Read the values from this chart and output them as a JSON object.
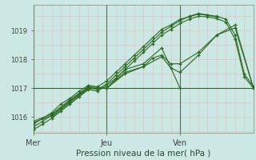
{
  "bg_color": "#cce8e4",
  "plot_bg_color": "#cce8e4",
  "grid_color_h": "#f0c8c8",
  "grid_color_v": "#f0c8c8",
  "vline_color": "#555555",
  "line_color": "#2a6a20",
  "title": "Pression niveau de la mer( hPa )",
  "ylabel_vals": [
    1016,
    1017,
    1018,
    1019
  ],
  "ylim": [
    1015.45,
    1019.9
  ],
  "xlim": [
    0,
    72
  ],
  "xtick_positions": [
    0,
    24,
    48
  ],
  "xtick_labels": [
    "Mer",
    "Jeu",
    "Ven"
  ],
  "vline_positions": [
    0,
    24,
    48
  ],
  "series": [
    {
      "x": [
        0,
        3,
        6,
        9,
        12,
        15,
        18,
        21,
        24,
        27,
        30,
        33,
        36,
        39,
        42,
        45,
        48,
        51,
        54,
        57,
        60,
        63,
        66,
        69,
        72
      ],
      "y": [
        1015.65,
        1015.85,
        1016.05,
        1016.3,
        1016.55,
        1016.8,
        1017.05,
        1016.95,
        1017.15,
        1017.45,
        1017.75,
        1018.05,
        1018.35,
        1018.65,
        1018.95,
        1019.15,
        1019.35,
        1019.5,
        1019.6,
        1019.55,
        1019.5,
        1019.4,
        1018.85,
        1017.5,
        1017.05
      ]
    },
    {
      "x": [
        0,
        3,
        6,
        9,
        12,
        15,
        18,
        21,
        24,
        27,
        30,
        33,
        36,
        39,
        42,
        45,
        48,
        51,
        54,
        57,
        60,
        63,
        66,
        69,
        72
      ],
      "y": [
        1015.55,
        1015.75,
        1015.95,
        1016.2,
        1016.45,
        1016.7,
        1016.95,
        1016.9,
        1017.1,
        1017.35,
        1017.65,
        1017.95,
        1018.25,
        1018.55,
        1018.85,
        1019.05,
        1019.25,
        1019.4,
        1019.5,
        1019.48,
        1019.42,
        1019.3,
        1018.7,
        1017.4,
        1017.0
      ]
    },
    {
      "x": [
        0,
        3,
        6,
        9,
        12,
        15,
        18,
        21,
        24,
        27,
        30,
        33,
        36,
        39,
        42,
        45,
        48,
        51,
        54,
        57,
        60
      ],
      "y": [
        1015.75,
        1015.95,
        1016.15,
        1016.45,
        1016.65,
        1016.9,
        1017.1,
        1017.05,
        1017.25,
        1017.55,
        1017.85,
        1018.15,
        1018.45,
        1018.75,
        1019.05,
        1019.2,
        1019.4,
        1019.48,
        1019.58,
        1019.53,
        1019.48
      ]
    },
    {
      "x": [
        0,
        6,
        12,
        18,
        24,
        30,
        36,
        42,
        48
      ],
      "y": [
        1015.85,
        1016.1,
        1016.6,
        1017.05,
        1017.0,
        1017.65,
        1017.85,
        1018.4,
        1017.0
      ]
    },
    {
      "x": [
        0,
        6,
        12,
        18,
        24,
        30,
        36,
        42,
        45,
        48,
        54,
        60,
        66,
        72
      ],
      "y": [
        1015.8,
        1016.05,
        1016.55,
        1017.0,
        1017.0,
        1017.55,
        1017.75,
        1018.1,
        1017.7,
        1017.55,
        1018.15,
        1018.85,
        1019.2,
        1017.0
      ]
    },
    {
      "x": [
        6,
        12,
        18,
        24,
        30,
        36,
        39,
        42,
        45,
        48,
        54,
        60,
        66,
        72
      ],
      "y": [
        1016.0,
        1016.5,
        1016.98,
        1017.0,
        1017.5,
        1017.75,
        1018.05,
        1018.15,
        1017.85,
        1017.85,
        1018.25,
        1018.85,
        1019.1,
        1017.0
      ]
    },
    {
      "x": [
        0,
        72
      ],
      "y": [
        1017.0,
        1017.0
      ],
      "flat": true
    }
  ]
}
